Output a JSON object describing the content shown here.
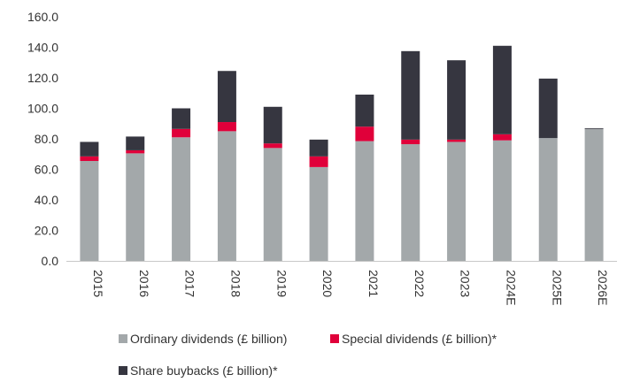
{
  "chart_data": {
    "type": "bar",
    "stacked": true,
    "title": "",
    "xlabel": "",
    "ylabel": "",
    "ylim": [
      0,
      160
    ],
    "yticks": [
      "0.0",
      "20.0",
      "40.0",
      "60.0",
      "80.0",
      "100.0",
      "120.0",
      "140.0",
      "160.0"
    ],
    "grid": false,
    "legend_position": "bottom",
    "categories": [
      "2015",
      "2016",
      "2017",
      "2018",
      "2019",
      "2020",
      "2021",
      "2022",
      "2023",
      "2024E",
      "2025E",
      "2026E"
    ],
    "series": [
      {
        "name": "Ordinary dividends (£ billion)",
        "color": "#a3a8aa",
        "values": [
          65.5,
          70.5,
          81.0,
          85.0,
          74.0,
          61.5,
          78.5,
          76.5,
          78.0,
          79.0,
          80.5,
          86.5
        ]
      },
      {
        "name": "Special dividends (£ billion)*",
        "color": "#e0003a",
        "values": [
          3.0,
          2.0,
          5.5,
          6.0,
          3.0,
          7.0,
          9.5,
          3.0,
          1.5,
          4.0,
          0.0,
          0.0
        ]
      },
      {
        "name": "Share buybacks (£ billion)*",
        "color": "#363640",
        "values": [
          9.5,
          9.0,
          13.5,
          33.5,
          24.0,
          11.0,
          21.0,
          58.0,
          52.0,
          58.0,
          39.0,
          0.5
        ]
      }
    ]
  }
}
